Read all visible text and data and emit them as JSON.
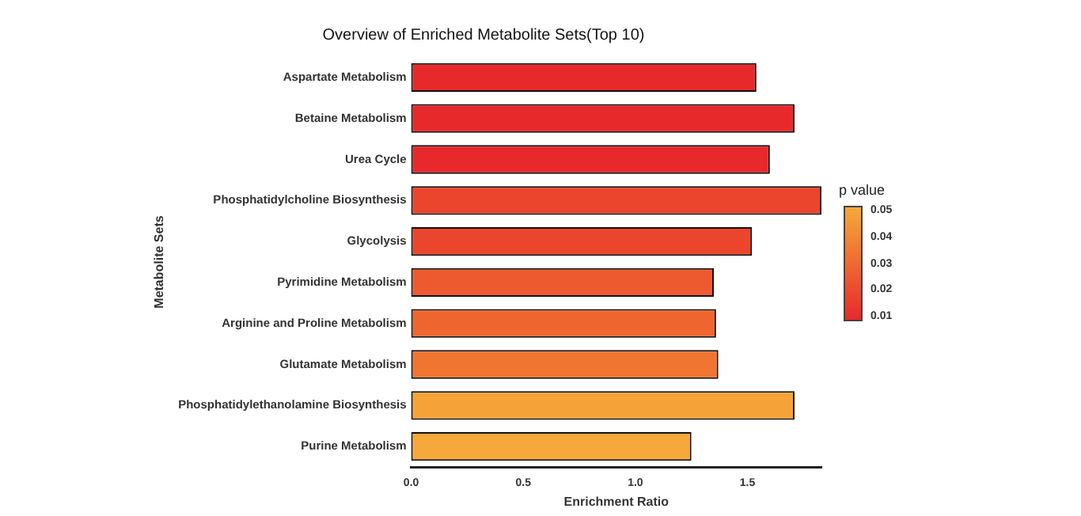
{
  "chart_data": {
    "type": "bar",
    "orientation": "horizontal",
    "title": "Overview of Enriched Metabolite Sets(Top 10)",
    "xlabel": "Enrichment Ratio",
    "ylabel": "Metabolite Sets",
    "categories": [
      "Aspartate Metabolism",
      "Betaine Metabolism",
      "Urea Cycle",
      "Phosphatidylcholine Biosynthesis",
      "Glycolysis",
      "Pyrimidine Metabolism",
      "Arginine and Proline Metabolism",
      "Glutamate Metabolism",
      "Phosphatidylethanolamine Biosynthesis",
      "Purine Metabolism"
    ],
    "values": [
      1.54,
      1.71,
      1.6,
      1.83,
      1.52,
      1.35,
      1.36,
      1.37,
      1.71,
      1.25
    ],
    "colors": [
      "#e8292b",
      "#e8292b",
      "#e8292b",
      "#ec452d",
      "#ec452d",
      "#ee5a2f",
      "#ef6530",
      "#f07531",
      "#f5a339",
      "#f5a93a"
    ],
    "xlim": [
      0,
      1.83
    ],
    "xticks": [
      {
        "value": 0,
        "label": "0.0"
      },
      0.5,
      {
        "value": 1,
        "label": "1.0"
      },
      1.5
    ],
    "clabel": "p value",
    "clim": [
      0.01,
      0.05
    ],
    "cticks": [
      0.01,
      0.02,
      0.03,
      0.04,
      0.05
    ],
    "grid": false,
    "legend": false
  }
}
